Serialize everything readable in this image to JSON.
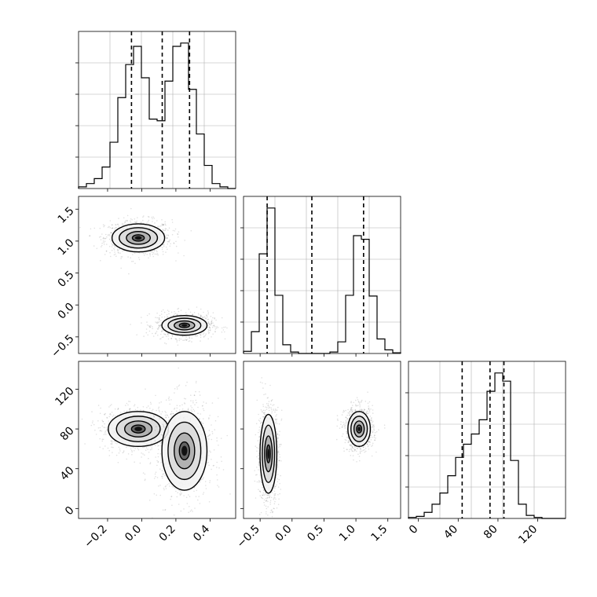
{
  "chart_data": [
    {
      "type": "histogram",
      "panel": "hist-param-1",
      "x_ticks": [
        "−0.2",
        "0.0",
        "0.2",
        "0.4"
      ],
      "xlim": [
        -0.37,
        0.55
      ],
      "bin_edges": [
        -0.37,
        -0.324,
        -0.278,
        -0.232,
        -0.186,
        -0.14,
        -0.094,
        -0.048,
        -0.002,
        0.044,
        0.09,
        0.136,
        0.182,
        0.228,
        0.274,
        0.32,
        0.366,
        0.412,
        0.458,
        0.504,
        0.55
      ],
      "counts": [
        1,
        3,
        6,
        13,
        28,
        55,
        75,
        86,
        67,
        42,
        41,
        65,
        86,
        88,
        60,
        33,
        14,
        3,
        1,
        0
      ],
      "quantile_lines": [
        -0.06,
        0.12,
        0.28
      ],
      "grid": true
    },
    {
      "type": "histogram",
      "panel": "hist-param-2",
      "x_ticks": [
        "−0.5",
        "0.0",
        "0.5",
        "1.0",
        "1.5"
      ],
      "xlim": [
        -0.76,
        1.7
      ],
      "bin_edges": [
        -0.76,
        -0.637,
        -0.514,
        -0.391,
        -0.268,
        -0.145,
        -0.022,
        0.101,
        0.224,
        0.347,
        0.47,
        0.593,
        0.716,
        0.839,
        0.962,
        1.085,
        1.208,
        1.331,
        1.454,
        1.577,
        1.7
      ],
      "counts": [
        3,
        30,
        137,
        200,
        80,
        12,
        2,
        0,
        0,
        0,
        0,
        2,
        16,
        80,
        162,
        157,
        79,
        20,
        5,
        1
      ],
      "quantile_lines": [
        -0.39,
        0.31,
        1.12
      ],
      "grid": true
    },
    {
      "type": "histogram",
      "panel": "hist-param-3",
      "x_ticks": [
        "0",
        "40",
        "80",
        "120"
      ],
      "xlim": [
        -10,
        148
      ],
      "bin_edges": [
        -10,
        -2.1,
        5.8,
        13.7,
        21.6,
        29.5,
        37.4,
        45.3,
        53.2,
        61.1,
        69.0,
        76.9,
        84.8,
        92.7,
        100.6,
        108.5,
        116.4,
        124.3,
        132.2,
        140.1,
        148
      ],
      "counts": [
        1,
        2,
        6,
        14,
        25,
        42,
        60,
        73,
        83,
        97,
        125,
        143,
        135,
        57,
        14,
        3,
        1,
        0,
        0,
        0
      ],
      "quantile_lines": [
        44,
        72,
        86
      ],
      "grid": true
    },
    {
      "type": "scatter-density",
      "panel": "joint-param-1-vs-param-2",
      "x_ticks": [
        "−0.2",
        "0.0",
        "0.2",
        "0.4"
      ],
      "y_ticks": [
        "−0.5",
        "0.0",
        "0.5",
        "1.0",
        "1.5"
      ],
      "xlim": [
        -0.37,
        0.55
      ],
      "ylim": [
        -0.76,
        1.7
      ],
      "clusters": [
        {
          "x": -0.02,
          "y": 1.05,
          "sx": 0.07,
          "sy": 0.1,
          "n": 900
        },
        {
          "x": 0.25,
          "y": -0.32,
          "sx": 0.06,
          "sy": 0.07,
          "n": 900
        }
      ]
    },
    {
      "type": "scatter-density",
      "panel": "joint-param-1-vs-param-3",
      "x_ticks": [
        "−0.2",
        "0.0",
        "0.2",
        "0.4"
      ],
      "y_ticks": [
        "0",
        "40",
        "80",
        "120"
      ],
      "xlim": [
        -0.37,
        0.55
      ],
      "ylim": [
        -10,
        148
      ],
      "clusters": [
        {
          "x": -0.02,
          "y": 80,
          "sx": 0.08,
          "sy": 8,
          "n": 900
        },
        {
          "x": 0.25,
          "y": 58,
          "sx": 0.06,
          "sy": 18,
          "n": 900
        }
      ]
    },
    {
      "type": "scatter-density",
      "panel": "joint-param-2-vs-param-3",
      "x_ticks": [
        "−0.5",
        "0.0",
        "0.5",
        "1.0",
        "1.5"
      ],
      "y_ticks": [
        "0",
        "40",
        "80",
        "120"
      ],
      "xlim": [
        -0.76,
        1.7
      ],
      "ylim": [
        -10,
        148
      ],
      "clusters": [
        {
          "x": -0.37,
          "y": 55,
          "sx": 0.06,
          "sy": 18,
          "n": 900
        },
        {
          "x": 1.05,
          "y": 80,
          "sx": 0.08,
          "sy": 8,
          "n": 900
        }
      ]
    }
  ]
}
